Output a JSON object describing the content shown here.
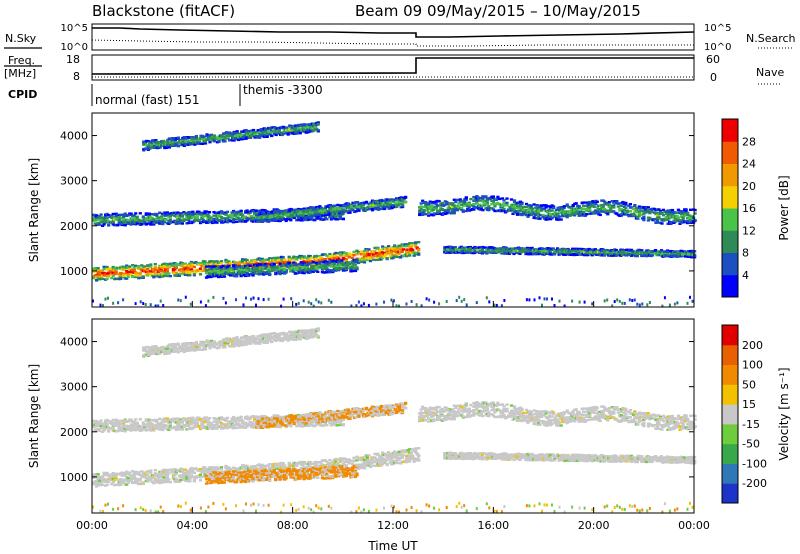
{
  "header": {
    "station": "Blackstone (fitACF)",
    "beam_info": "Beam 09  09/May/2015 – 10/May/2015"
  },
  "top_panels": {
    "nsky_label": "N.Sky",
    "nsearch_label": "N.Search",
    "freq_label_line1": "Freq.",
    "freq_label_line2": "[MHz]",
    "nave_label": "Nave",
    "cpid_label": "CPID",
    "noise_left_ticks": [
      "10^5",
      "10^0"
    ],
    "noise_right_ticks": [
      "10^5",
      "10^0"
    ],
    "freq_left_ticks": [
      "18",
      "8"
    ],
    "freq_right_ticks": [
      "60",
      "0"
    ],
    "cpid_modes": [
      {
        "name": "normal (fast) 151",
        "start_hour": 0
      },
      {
        "name": "themis -3300",
        "start_hour": 6
      }
    ]
  },
  "chart_data": [
    {
      "type": "heatmap",
      "panel": "power",
      "title": "",
      "xlabel": "",
      "ylabel": "Slant Range [km]",
      "xlim_hours": [
        0,
        24
      ],
      "ylim": [
        200,
        4500
      ],
      "y_ticks": [
        "1000",
        "2000",
        "3000",
        "4000"
      ],
      "colorbar_label": "Power [dB]",
      "colorbar_ticks": [
        "4",
        "8",
        "12",
        "16",
        "20",
        "24",
        "28"
      ],
      "colorbar_colors": [
        "#0000ff",
        "#1c4fbf",
        "#2e8b57",
        "#49c349",
        "#f4d000",
        "#f09a00",
        "#f05a00",
        "#ee0000"
      ]
    },
    {
      "type": "heatmap",
      "panel": "velocity",
      "title": "",
      "xlabel": "Time UT",
      "ylabel": "Slant Range [km]",
      "xlim_hours": [
        0,
        24
      ],
      "ylim": [
        200,
        4500
      ],
      "x_ticks": [
        "00:00",
        "04:00",
        "08:00",
        "12:00",
        "16:00",
        "20:00",
        "00:00"
      ],
      "y_ticks": [
        "1000",
        "2000",
        "3000",
        "4000"
      ],
      "colorbar_label": "Velocity [m s⁻¹]",
      "colorbar_ticks": [
        "200",
        "100",
        "50",
        "15",
        "-15",
        "-50",
        "-100",
        "-200"
      ],
      "colorbar_colors": [
        "#1c34c8",
        "#2f78b8",
        "#39a84a",
        "#6fcc3c",
        "#c8c8c8",
        "#f2c200",
        "#f28a00",
        "#e86000",
        "#e00000"
      ]
    }
  ]
}
